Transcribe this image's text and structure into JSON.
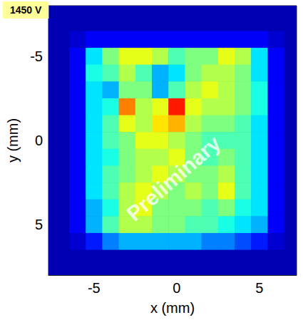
{
  "chart_data": {
    "type": "heatmap",
    "title": "1450 V",
    "annotation": "Preliminary",
    "x_label": "x (mm)",
    "y_label": "y (mm)",
    "xlim": [
      -7.75,
      7.25
    ],
    "ylim": [
      -8,
      8
    ],
    "xticks": [
      -5,
      0,
      5
    ],
    "yticks": [
      -5,
      0,
      5
    ],
    "grid": false,
    "color_range": [
      0,
      1
    ],
    "cells": {
      "x": [
        -8,
        -7,
        -6,
        -5,
        -4,
        -3,
        -2,
        -1,
        0,
        1,
        2,
        3,
        4,
        5,
        6,
        7
      ],
      "y": [
        -8,
        -7,
        -6,
        -5,
        -4,
        -3,
        -2,
        -1,
        0,
        1,
        2,
        3,
        4,
        5,
        6,
        7,
        8
      ],
      "values": [
        [
          0.05,
          0.05,
          0.05,
          0.05,
          0.05,
          0.05,
          0.05,
          0.05,
          0.05,
          0.05,
          0.05,
          0.05,
          0.05,
          0.05,
          0.05,
          0.05
        ],
        [
          0.05,
          0.05,
          0.05,
          0.05,
          0.05,
          0.05,
          0.05,
          0.05,
          0.05,
          0.05,
          0.05,
          0.05,
          0.05,
          0.05,
          0.05,
          0.05
        ],
        [
          0.05,
          0.05,
          0.08,
          0.12,
          0.12,
          0.12,
          0.12,
          0.12,
          0.12,
          0.12,
          0.12,
          0.12,
          0.12,
          0.12,
          0.08,
          0.05
        ],
        [
          0.05,
          0.05,
          0.12,
          0.35,
          0.5,
          0.6,
          0.6,
          0.55,
          0.45,
          0.5,
          0.5,
          0.6,
          0.55,
          0.35,
          0.12,
          0.05
        ],
        [
          0.05,
          0.05,
          0.12,
          0.4,
          0.45,
          0.55,
          0.45,
          0.3,
          0.35,
          0.5,
          0.55,
          0.55,
          0.5,
          0.35,
          0.12,
          0.05
        ],
        [
          0.05,
          0.05,
          0.12,
          0.35,
          0.3,
          0.5,
          0.5,
          0.3,
          0.45,
          0.55,
          0.6,
          0.55,
          0.5,
          0.4,
          0.12,
          0.05
        ],
        [
          0.05,
          0.05,
          0.12,
          0.35,
          0.4,
          0.75,
          0.55,
          0.6,
          0.85,
          0.6,
          0.55,
          0.55,
          0.5,
          0.4,
          0.12,
          0.05
        ],
        [
          0.05,
          0.05,
          0.12,
          0.35,
          0.45,
          0.6,
          0.55,
          0.65,
          0.7,
          0.55,
          0.5,
          0.5,
          0.45,
          0.35,
          0.12,
          0.05
        ],
        [
          0.05,
          0.05,
          0.12,
          0.35,
          0.45,
          0.5,
          0.6,
          0.6,
          0.55,
          0.5,
          0.45,
          0.45,
          0.45,
          0.35,
          0.12,
          0.05
        ],
        [
          0.05,
          0.05,
          0.12,
          0.35,
          0.4,
          0.5,
          0.55,
          0.55,
          0.6,
          0.5,
          0.45,
          0.5,
          0.45,
          0.35,
          0.12,
          0.05
        ],
        [
          0.05,
          0.05,
          0.12,
          0.35,
          0.45,
          0.5,
          0.55,
          0.6,
          0.55,
          0.5,
          0.5,
          0.55,
          0.45,
          0.35,
          0.12,
          0.05
        ],
        [
          0.05,
          0.05,
          0.12,
          0.35,
          0.45,
          0.55,
          0.6,
          0.55,
          0.5,
          0.55,
          0.5,
          0.6,
          0.45,
          0.35,
          0.12,
          0.05
        ],
        [
          0.05,
          0.05,
          0.12,
          0.3,
          0.4,
          0.55,
          0.6,
          0.5,
          0.5,
          0.5,
          0.45,
          0.5,
          0.4,
          0.35,
          0.12,
          0.05
        ],
        [
          0.05,
          0.05,
          0.12,
          0.3,
          0.45,
          0.55,
          0.55,
          0.5,
          0.5,
          0.45,
          0.45,
          0.4,
          0.35,
          0.3,
          0.12,
          0.05
        ],
        [
          0.05,
          0.05,
          0.08,
          0.15,
          0.25,
          0.3,
          0.3,
          0.3,
          0.3,
          0.3,
          0.25,
          0.25,
          0.2,
          0.15,
          0.08,
          0.05
        ],
        [
          0.05,
          0.05,
          0.05,
          0.05,
          0.05,
          0.05,
          0.05,
          0.05,
          0.05,
          0.05,
          0.05,
          0.05,
          0.05,
          0.05,
          0.05,
          0.05
        ],
        [
          0.05,
          0.05,
          0.05,
          0.05,
          0.05,
          0.05,
          0.05,
          0.05,
          0.05,
          0.05,
          0.05,
          0.05,
          0.05,
          0.05,
          0.05,
          0.05
        ]
      ]
    }
  }
}
